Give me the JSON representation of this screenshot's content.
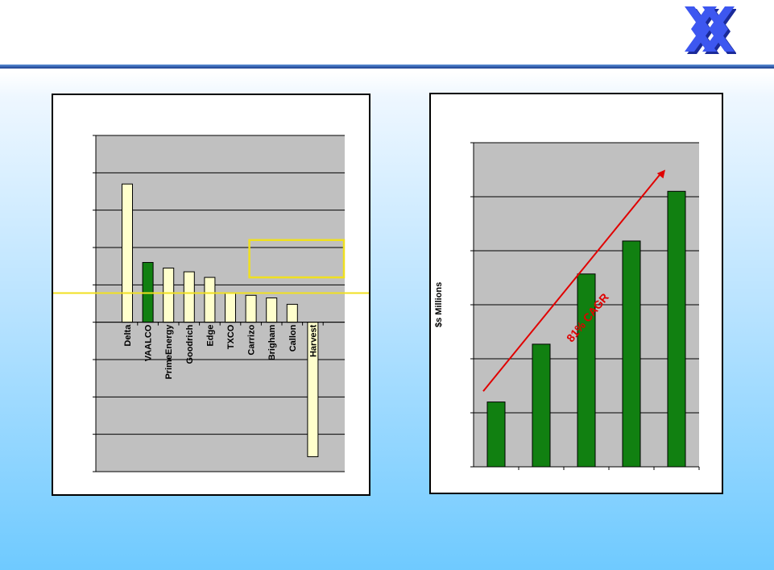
{
  "colors": {
    "plot_bg": "#c0c0c0",
    "peer_bar": "#ffffcc",
    "highlight_bar": "#118011",
    "growth_bar": "#118011",
    "benchmark_line": "#f0e020",
    "trend_arrow": "#e00000",
    "header_rule": "#1c3f8e",
    "logo": "#2a3fd8"
  },
  "logo": {
    "icon": "double-x-logo-icon"
  },
  "chart_data": [
    {
      "type": "bar",
      "categories": [
        "Delta",
        "VAALCO",
        "PrimeEnergy",
        "Goodrich",
        "Edge",
        "TXCO",
        "Carrizo",
        "Brigham",
        "Callon",
        "Harvest"
      ],
      "values": [
        3.7,
        1.6,
        1.45,
        1.35,
        1.2,
        0.78,
        0.72,
        0.65,
        0.48,
        -3.6
      ],
      "highlight": "VAALCO",
      "ylim": [
        -4,
        5
      ],
      "gridlines": [
        -4,
        -3,
        -2,
        -1,
        0,
        1,
        2,
        3,
        4,
        5
      ],
      "benchmark_line_value": 0.78,
      "highlight_box": {
        "y_range": [
          1.2,
          2.2
        ],
        "category_span": [
          "Carrizo",
          "Harvest"
        ]
      },
      "grid": true,
      "legend": "none"
    },
    {
      "type": "bar",
      "categories": [
        "",
        "",
        "",
        "",
        ""
      ],
      "values": [
        1.2,
        2.27,
        3.57,
        4.18,
        5.1
      ],
      "ylabel": "$s Millions",
      "ylim": [
        0,
        6
      ],
      "gridlines": [
        0,
        1,
        2,
        3,
        4,
        5,
        6
      ],
      "annotation": "81% CAGR",
      "trend_arrow": {
        "from": [
          0.5,
          1.4
        ],
        "to": [
          4.25,
          5.5
        ]
      },
      "grid": true,
      "legend": "none"
    }
  ]
}
